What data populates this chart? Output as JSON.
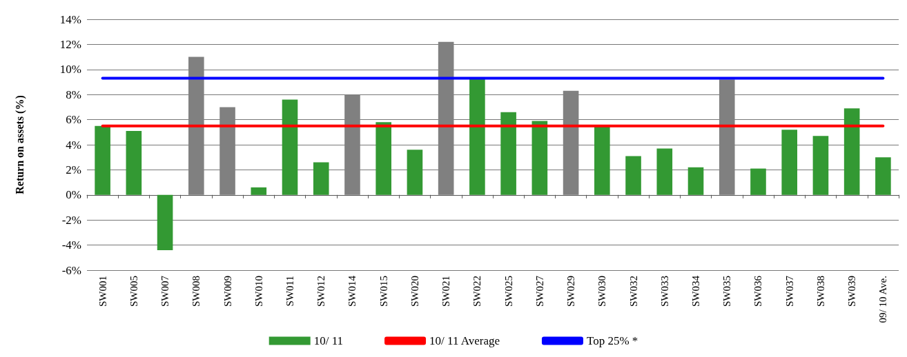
{
  "chart_data": {
    "type": "bar",
    "ylabel": "Return on assets (%)",
    "categories": [
      "SW001",
      "SW005",
      "SW007",
      "SW008",
      "SW009",
      "SW010",
      "SW011",
      "SW012",
      "SW014",
      "SW015",
      "SW020",
      "SW021",
      "SW022",
      "SW025",
      "SW027",
      "SW029",
      "SW030",
      "SW032",
      "SW033",
      "SW034",
      "SW035",
      "SW036",
      "SW037",
      "SW038",
      "SW039",
      "09/ 10 Ave."
    ],
    "series": [
      {
        "name": "10/ 11",
        "color": "#339933",
        "values": [
          5.5,
          5.1,
          -4.4,
          11.0,
          7.0,
          0.6,
          7.6,
          2.6,
          8.0,
          5.8,
          3.6,
          12.2,
          9.3,
          6.6,
          5.9,
          8.3,
          5.5,
          3.1,
          3.7,
          2.2,
          9.2,
          2.1,
          5.2,
          4.7,
          6.9,
          3.0
        ],
        "colors": [
          "#339933",
          "#339933",
          "#339933",
          "#808080",
          "#808080",
          "#339933",
          "#339933",
          "#339933",
          "#808080",
          "#339933",
          "#339933",
          "#808080",
          "#339933",
          "#339933",
          "#339933",
          "#808080",
          "#339933",
          "#339933",
          "#339933",
          "#339933",
          "#808080",
          "#339933",
          "#339933",
          "#339933",
          "#339933",
          "#339933"
        ]
      },
      {
        "name": "10/ 11 Average",
        "type": "line",
        "color": "#ff0000",
        "values": [
          5.5,
          5.5,
          5.5,
          5.5,
          5.5,
          5.5,
          5.5,
          5.5,
          5.5,
          5.5,
          5.5,
          5.5,
          5.5,
          5.5,
          5.5,
          5.5,
          5.5,
          5.5,
          5.5,
          5.5,
          5.5,
          5.5,
          5.5,
          5.5,
          5.5,
          5.5
        ]
      },
      {
        "name": "Top 25% *",
        "type": "line",
        "color": "#0000ff",
        "values": [
          9.3,
          9.3,
          9.3,
          9.3,
          9.3,
          9.3,
          9.3,
          9.3,
          9.3,
          9.3,
          9.3,
          9.3,
          9.3,
          9.3,
          9.3,
          9.3,
          9.3,
          9.3,
          9.3,
          9.3,
          9.3,
          9.3,
          9.3,
          9.3,
          9.3,
          9.3
        ]
      }
    ],
    "ylim": [
      -6,
      14
    ],
    "yticks": [
      {
        "value": -6,
        "label": "-6%"
      },
      {
        "value": -4,
        "label": "-4%"
      },
      {
        "value": -2,
        "label": "-2%"
      },
      {
        "value": 0,
        "label": "0%"
      },
      {
        "value": 2,
        "label": "2%"
      },
      {
        "value": 4,
        "label": "4%"
      },
      {
        "value": 6,
        "label": "6%"
      },
      {
        "value": 8,
        "label": "8%"
      },
      {
        "value": 10,
        "label": "10%"
      },
      {
        "value": 12,
        "label": "12%"
      },
      {
        "value": 14,
        "label": "14%"
      }
    ],
    "grid": "y",
    "legend": "bottom",
    "marker": "none"
  }
}
